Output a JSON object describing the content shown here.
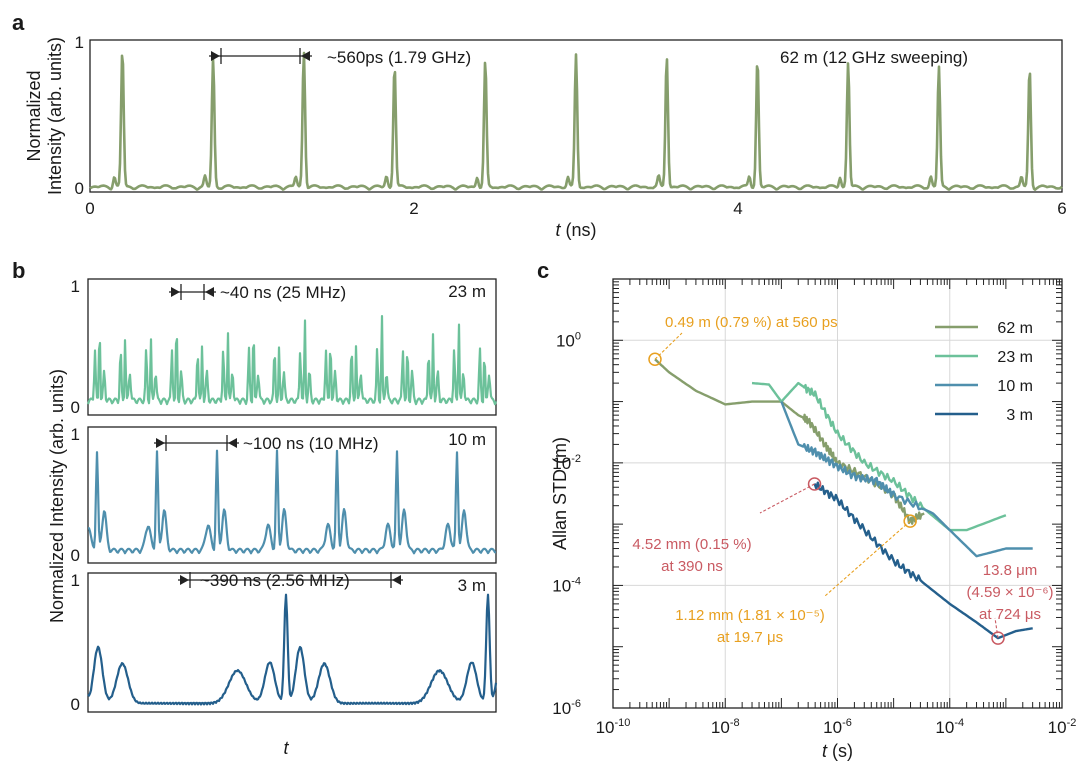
{
  "panel_labels": [
    "a",
    "b",
    "c"
  ],
  "colors": {
    "m62": "#869e6c",
    "m23": "#6cc19a",
    "m10": "#4f8fad",
    "m3": "#245f8c",
    "orange": "#e8a020",
    "red": "#c95a62"
  },
  "chart_data": [
    {
      "id": "a",
      "type": "line",
      "xlabel_italic": "t",
      "xlabel_unit": " (ns)",
      "ylabel_lines": [
        "Normalized",
        "Intensity (arb. units)"
      ],
      "xlim": [
        0,
        6
      ],
      "ylim": [
        0,
        1
      ],
      "xticks": [
        "0",
        "2",
        "4",
        "6"
      ],
      "yticks": [
        "0",
        "1"
      ],
      "series": [
        {
          "color": "#869e6c",
          "period_ns": 0.56,
          "first_peak_ns": 0.2,
          "peak_heights": [
            0.93,
            0.87,
            0.92,
            0.83,
            0.85,
            0.89,
            0.89,
            0.87,
            0.84,
            0.81,
            0.8
          ]
        }
      ],
      "annotations": {
        "period": "~560ps (1.79 GHz)",
        "label": "62 m (12 GHz sweeping)"
      }
    },
    {
      "id": "b",
      "type": "line",
      "xlabel_italic": "t",
      "ylabel": "Normalized Intensity (arb. units)",
      "subplots": [
        {
          "label": "23 m",
          "period_label": "~40 ns (25 MHz)",
          "color": "#6cc19a",
          "yticks": [
            "0",
            "1"
          ],
          "peaks": 16
        },
        {
          "label": "10 m",
          "period_label": "~100 ns (10 MHz)",
          "color": "#4f8fad",
          "yticks": [
            "0",
            "1"
          ],
          "peaks": 7
        },
        {
          "label": "3 m",
          "period_label": "~390 ns (2.56 MHz)",
          "color": "#245f8c",
          "yticks": [
            "0",
            "1"
          ],
          "peaks": 2
        }
      ]
    },
    {
      "id": "c",
      "type": "line",
      "xscale": "log",
      "yscale": "log",
      "xlabel_italic": "t",
      "xlabel_unit": " (s)",
      "ylabel": "Allan STD (m)",
      "xlim": [
        1e-10,
        0.01
      ],
      "ylim": [
        1e-06,
        10
      ],
      "xtick_exponents": [
        "-10",
        "-8",
        "-6",
        "-4",
        "-2"
      ],
      "ytick_exponents": [
        "-6",
        "-4",
        "-2",
        "0"
      ],
      "grid": true,
      "legend_position": "top-right",
      "series": [
        {
          "name": "62 m",
          "color": "#869e6c",
          "x": [
            5.6e-10,
            1e-09,
            3e-09,
            1e-08,
            3e-08,
            1e-07,
            2e-07,
            3e-07,
            6e-07,
            1e-06,
            3e-06,
            1e-05,
            1.97e-05,
            3.5e-05
          ],
          "y": [
            0.49,
            0.3,
            0.15,
            0.09,
            0.1,
            0.1,
            0.06,
            0.05,
            0.02,
            0.01,
            0.006,
            0.003,
            0.00112,
            0.0015
          ]
        },
        {
          "name": "23 m",
          "color": "#6cc19a",
          "x": [
            3e-08,
            6e-08,
            1e-07,
            2e-07,
            4e-07,
            1e-06,
            3e-06,
            1e-05,
            3e-05,
            0.0001,
            0.0002,
            0.001
          ],
          "y": [
            0.2,
            0.19,
            0.1,
            0.2,
            0.13,
            0.03,
            0.01,
            0.005,
            0.002,
            0.0008,
            0.0008,
            0.0014
          ]
        },
        {
          "name": "10 m",
          "color": "#4f8fad",
          "x": [
            1e-07,
            2e-07,
            4e-07,
            8e-07,
            2e-06,
            5e-06,
            1e-05,
            5e-05,
            0.0001,
            0.0003,
            0.001,
            0.003
          ],
          "y": [
            0.1,
            0.02,
            0.015,
            0.01,
            0.006,
            0.005,
            0.003,
            0.0015,
            0.0008,
            0.0003,
            0.0004,
            0.0004
          ]
        },
        {
          "name": "3 m",
          "color": "#245f8c",
          "x": [
            3.9e-07,
            1e-06,
            3e-06,
            1e-05,
            3e-05,
            0.0001,
            0.0003,
            0.000724,
            0.0015,
            0.003
          ],
          "y": [
            0.00452,
            0.0025,
            0.0008,
            0.00025,
            0.00012,
            5e-05,
            2.5e-05,
            1.38e-05,
            1.8e-05,
            2e-05
          ]
        }
      ],
      "annotations": [
        {
          "lines": [
            "0.49 m (0.79 %) at 560 ps"
          ],
          "x": 5.6e-10,
          "y": 0.49,
          "color": "orange"
        },
        {
          "lines": [
            "4.52 mm (0.15 %)",
            "at 390 ns"
          ],
          "x": 3.9e-07,
          "y": 0.00452,
          "color": "red"
        },
        {
          "lines": [
            "1.12 mm  (1.81 × 10⁻⁵)",
            "at 19.7 μs"
          ],
          "x": 1.97e-05,
          "y": 0.00112,
          "color": "orange"
        },
        {
          "lines": [
            "13.8 μm",
            "(4.59 × 10⁻⁶)",
            "at 724 μs"
          ],
          "x": 0.000724,
          "y": 1.38e-05,
          "color": "red"
        }
      ]
    }
  ]
}
